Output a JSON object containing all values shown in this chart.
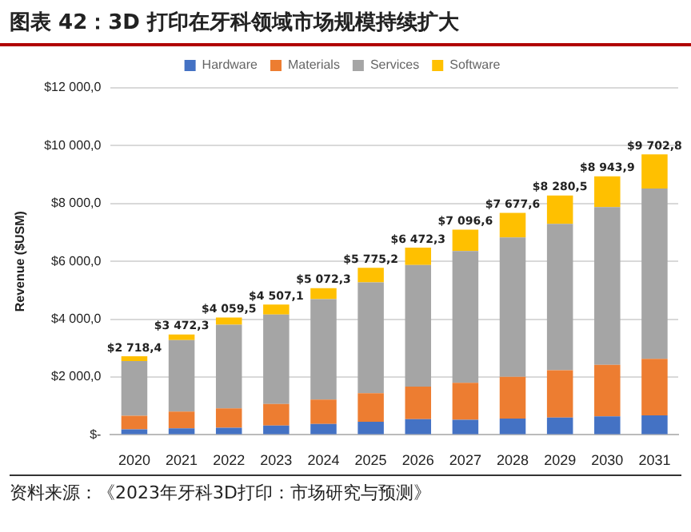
{
  "chart_data": {
    "type": "bar",
    "title": "图表 42：3D 打印在牙科领域市场规模持续扩大",
    "ylabel": "Revenue ($USM)",
    "stacked": true,
    "legend": "top",
    "grid": "y",
    "categories": [
      "2020",
      "2021",
      "2022",
      "2023",
      "2024",
      "2025",
      "2026",
      "2027",
      "2028",
      "2029",
      "2030",
      "2031"
    ],
    "series": [
      {
        "name": "Hardware",
        "color": "#4472c4",
        "values": [
          190,
          225,
          244,
          319,
          375,
          450,
          544,
          525,
          563,
          600,
          638,
          675
        ]
      },
      {
        "name": "Materials",
        "color": "#ed7d31",
        "values": [
          470,
          580,
          675,
          750,
          844,
          994,
          1126,
          1276,
          1444,
          1633,
          1782,
          1952
        ]
      },
      {
        "name": "Services",
        "color": "#a5a5a5",
        "values": [
          1890,
          2475,
          2889,
          3096,
          3471,
          3828,
          4202,
          4559,
          4822,
          5065,
          5460,
          5891
        ]
      },
      {
        "name": "Software",
        "color": "#ffc000",
        "values": [
          168.4,
          192.3,
          251.5,
          342.1,
          382.3,
          503.2,
          600.3,
          736.6,
          848.6,
          982.5,
          1063.9,
          1184.8
        ]
      }
    ],
    "totals": [
      "$2 718,4",
      "$3 472,3",
      "$4 059,5",
      "$4 507,1",
      "$5 072,3",
      "$5 775,2",
      "$6 472,3",
      "$7 096,6",
      "$7 677,6",
      "$8 280,5",
      "$8 943,9",
      "$9 702,8"
    ],
    "ylim": [
      0,
      12000
    ],
    "yticks": [
      {
        "value": 0,
        "label": "$-"
      },
      {
        "value": 2000,
        "label": "$2 000,0"
      },
      {
        "value": 4000,
        "label": "$4 000,0"
      },
      {
        "value": 6000,
        "label": "$6 000,0"
      },
      {
        "value": 8000,
        "label": "$8 000,0"
      },
      {
        "value": 10000,
        "label": "$10 000,0"
      },
      {
        "value": 12000,
        "label": "$12 000,0"
      }
    ],
    "annotations": [
      "资料来源：《2023年牙科3D打印：市场研究与预测》"
    ]
  }
}
